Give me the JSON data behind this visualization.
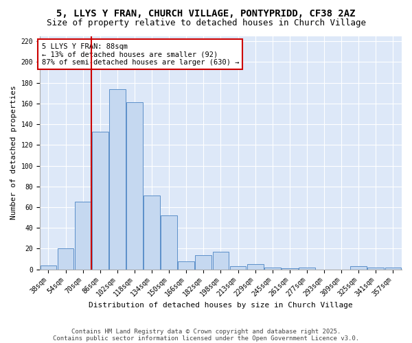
{
  "title1": "5, LLYS Y FRAN, CHURCH VILLAGE, PONTYPRIDD, CF38 2AZ",
  "title2": "Size of property relative to detached houses in Church Village",
  "xlabel": "Distribution of detached houses by size in Church Village",
  "ylabel": "Number of detached properties",
  "categories": [
    "38sqm",
    "54sqm",
    "70sqm",
    "86sqm",
    "102sqm",
    "118sqm",
    "134sqm",
    "150sqm",
    "166sqm",
    "182sqm",
    "198sqm",
    "213sqm",
    "229sqm",
    "245sqm",
    "261sqm",
    "277sqm",
    "293sqm",
    "309sqm",
    "325sqm",
    "341sqm",
    "357sqm"
  ],
  "values": [
    4,
    20,
    65,
    133,
    174,
    161,
    71,
    52,
    8,
    14,
    17,
    3,
    5,
    2,
    1,
    2,
    0,
    0,
    3,
    2,
    2
  ],
  "bar_color": "#c5d8f0",
  "bar_edge_color": "#5b8fc9",
  "vline_x": 3.0,
  "vline_color": "#cc0000",
  "annotation_text": "5 LLYS Y FRAN: 88sqm\n← 13% of detached houses are smaller (92)\n87% of semi-detached houses are larger (630) →",
  "annotation_box_color": "white",
  "annotation_box_edge_color": "#cc0000",
  "ylim": [
    0,
    225
  ],
  "yticks": [
    0,
    20,
    40,
    60,
    80,
    100,
    120,
    140,
    160,
    180,
    200,
    220
  ],
  "footnote1": "Contains HM Land Registry data © Crown copyright and database right 2025.",
  "footnote2": "Contains public sector information licensed under the Open Government Licence v3.0.",
  "bg_color": "#dde8f8",
  "title1_fontsize": 10,
  "title2_fontsize": 9,
  "axis_label_fontsize": 8,
  "tick_fontsize": 7,
  "annotation_fontsize": 7.5,
  "footnote_fontsize": 6.5
}
